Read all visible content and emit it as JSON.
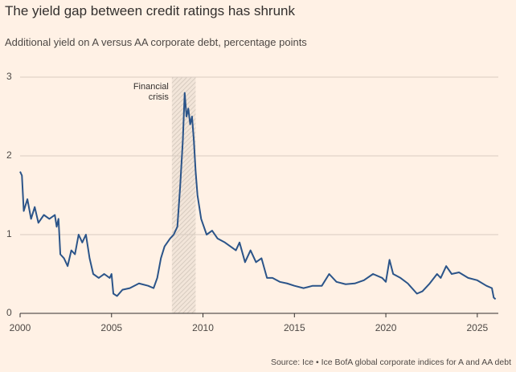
{
  "chart_data": {
    "type": "line",
    "title": "The yield gap between credit ratings has shrunk",
    "subtitle": "Additional yield on A versus AA corporate debt, percentage points",
    "source": "Source: Ice • Ice BofA global corporate indices for A and AA debt",
    "color": "#2b5489",
    "x": [
      2000.0,
      2000.1,
      2000.2,
      2000.4,
      2000.6,
      2000.8,
      2001.0,
      2001.3,
      2001.6,
      2001.9,
      2002.0,
      2002.1,
      2002.2,
      2002.4,
      2002.6,
      2002.8,
      2003.0,
      2003.2,
      2003.4,
      2003.6,
      2003.8,
      2004.0,
      2004.3,
      2004.6,
      2004.9,
      2005.0,
      2005.1,
      2005.3,
      2005.6,
      2006.0,
      2006.5,
      2007.0,
      2007.3,
      2007.5,
      2007.7,
      2007.9,
      2008.2,
      2008.4,
      2008.6,
      2008.75,
      2008.9,
      2009.0,
      2009.1,
      2009.2,
      2009.3,
      2009.4,
      2009.5,
      2009.6,
      2009.7,
      2009.9,
      2010.2,
      2010.5,
      2010.8,
      2011.2,
      2011.5,
      2011.8,
      2012.0,
      2012.3,
      2012.6,
      2012.9,
      2013.2,
      2013.5,
      2013.8,
      2014.2,
      2014.6,
      2015.0,
      2015.5,
      2016.0,
      2016.5,
      2016.9,
      2017.3,
      2017.8,
      2018.3,
      2018.8,
      2019.3,
      2019.8,
      2020.0,
      2020.2,
      2020.4,
      2020.8,
      2021.2,
      2021.7,
      2022.0,
      2022.4,
      2022.8,
      2023.0,
      2023.3,
      2023.6,
      2024.0,
      2024.5,
      2025.0,
      2025.5,
      2025.8,
      2025.9,
      2026.0
    ],
    "values": [
      1.8,
      1.75,
      1.3,
      1.45,
      1.2,
      1.35,
      1.15,
      1.25,
      1.2,
      1.25,
      1.1,
      1.2,
      0.75,
      0.7,
      0.6,
      0.8,
      0.75,
      1.0,
      0.9,
      1.0,
      0.7,
      0.5,
      0.45,
      0.5,
      0.45,
      0.5,
      0.25,
      0.22,
      0.3,
      0.32,
      0.38,
      0.35,
      0.32,
      0.45,
      0.7,
      0.85,
      0.95,
      1.0,
      1.1,
      1.6,
      2.2,
      2.8,
      2.5,
      2.6,
      2.4,
      2.5,
      2.2,
      1.8,
      1.5,
      1.2,
      1.0,
      1.05,
      0.95,
      0.9,
      0.85,
      0.8,
      0.9,
      0.65,
      0.8,
      0.65,
      0.7,
      0.45,
      0.45,
      0.4,
      0.38,
      0.35,
      0.32,
      0.35,
      0.35,
      0.5,
      0.4,
      0.37,
      0.38,
      0.42,
      0.5,
      0.45,
      0.4,
      0.68,
      0.5,
      0.45,
      0.38,
      0.25,
      0.28,
      0.38,
      0.5,
      0.45,
      0.6,
      0.5,
      0.52,
      0.45,
      0.42,
      0.35,
      0.32,
      0.2,
      0.18
    ],
    "xlim": [
      2000,
      2026.15
    ],
    "xticks": [
      2000,
      2005,
      2010,
      2015,
      2020,
      2025
    ],
    "ylim": [
      0,
      3
    ],
    "yticks": [
      0,
      1,
      2,
      3
    ],
    "grid": true,
    "annotations": [
      {
        "text": "Financial crisis",
        "x": [
          2008.3,
          2009.6
        ]
      }
    ]
  }
}
